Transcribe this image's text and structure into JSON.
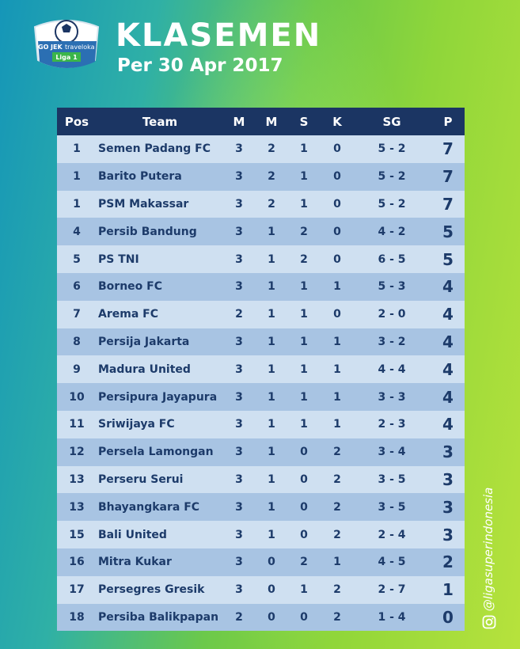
{
  "logo": {
    "go": "GO",
    "jek": "JEK",
    "brand": "traveloka",
    "league": "Liga 1"
  },
  "header": {
    "title": "KLASEMEN",
    "subtitle": "Per 30 Apr 2017"
  },
  "table": {
    "columns": [
      "Pos",
      "Team",
      "M",
      "M",
      "S",
      "K",
      "SG",
      "P"
    ],
    "rows": [
      [
        1,
        "Semen Padang FC",
        3,
        2,
        1,
        0,
        "5 - 2",
        7
      ],
      [
        1,
        "Barito Putera",
        3,
        2,
        1,
        0,
        "5 - 2",
        7
      ],
      [
        1,
        "PSM Makassar",
        3,
        2,
        1,
        0,
        "5 - 2",
        7
      ],
      [
        4,
        "Persib Bandung",
        3,
        1,
        2,
        0,
        "4 - 2",
        5
      ],
      [
        5,
        "PS TNI",
        3,
        1,
        2,
        0,
        "6 - 5",
        5
      ],
      [
        6,
        "Borneo FC",
        3,
        1,
        1,
        1,
        "5 - 3",
        4
      ],
      [
        7,
        "Arema FC",
        2,
        1,
        1,
        0,
        "2 - 0",
        4
      ],
      [
        8,
        "Persija Jakarta",
        3,
        1,
        1,
        1,
        "3 - 2",
        4
      ],
      [
        9,
        "Madura United",
        3,
        1,
        1,
        1,
        "4 - 4",
        4
      ],
      [
        10,
        "Persipura Jayapura",
        3,
        1,
        1,
        1,
        "3 - 3",
        4
      ],
      [
        11,
        "Sriwijaya FC",
        3,
        1,
        1,
        1,
        "2 - 3",
        4
      ],
      [
        12,
        "Persela Lamongan",
        3,
        1,
        0,
        2,
        "3 - 4",
        3
      ],
      [
        13,
        "Perseru Serui",
        3,
        1,
        0,
        2,
        "3 - 5",
        3
      ],
      [
        13,
        "Bhayangkara FC",
        3,
        1,
        0,
        2,
        "3 - 5",
        3
      ],
      [
        15,
        "Bali United",
        3,
        1,
        0,
        2,
        "2 - 4",
        3
      ],
      [
        16,
        "Mitra Kukar",
        3,
        0,
        2,
        1,
        "4 - 5",
        2
      ],
      [
        17,
        "Persegres Gresik",
        3,
        0,
        1,
        2,
        "2 - 7",
        1
      ],
      [
        18,
        "Persiba Balikpapan",
        2,
        0,
        0,
        2,
        "1 - 4",
        0
      ]
    ]
  },
  "social": {
    "handle": "@ligasuperindonesia"
  }
}
